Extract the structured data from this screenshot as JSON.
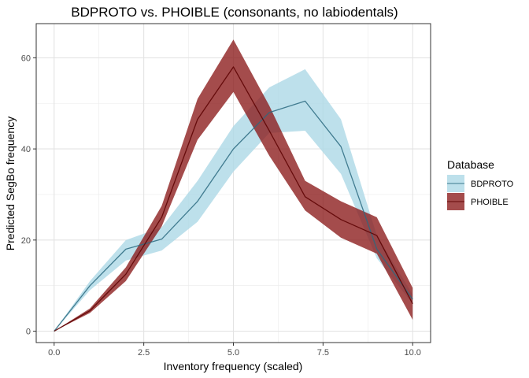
{
  "chart_data": {
    "type": "line",
    "title": "BDPROTO vs. PHOIBLE (consonants, no labiodentals)",
    "xlabel": "Inventory frequency (scaled)",
    "ylabel": "Predicted SegBo frequency",
    "xlim": [
      -0.5,
      10.5
    ],
    "ylim": [
      -2.5,
      67.5
    ],
    "x_ticks": [
      0,
      2.5,
      5,
      7.5,
      10
    ],
    "x_tick_labels": [
      "0.0",
      "2.5",
      "5.0",
      "7.5",
      "10.0"
    ],
    "y_ticks": [
      0,
      20,
      40,
      60
    ],
    "y_tick_labels": [
      "0",
      "20",
      "40",
      "60"
    ],
    "grid": true,
    "legend": {
      "title": "Database",
      "position": "right"
    },
    "x": [
      0,
      1,
      2,
      3,
      4,
      5,
      6,
      7,
      8,
      9,
      10
    ],
    "series": [
      {
        "name": "BDPROTO",
        "color": "#2b6a80",
        "ribbon_color": "#add8e6",
        "values": [
          0,
          10,
          18,
          20.2,
          28.5,
          40,
          48,
          50.5,
          40.5,
          18,
          7
        ],
        "lower": [
          0,
          9,
          15.5,
          17.7,
          24,
          35,
          43.5,
          44,
          34.5,
          16,
          6
        ],
        "upper": [
          0,
          11,
          20,
          22.8,
          33,
          45,
          53.5,
          57.5,
          46.5,
          21,
          8
        ]
      },
      {
        "name": "PHOIBLE",
        "color": "#5c0000",
        "ribbon_color": "#8b1a1a",
        "values": [
          0,
          4.5,
          12.5,
          25,
          46.5,
          58,
          44,
          29.5,
          24.5,
          21,
          6
        ],
        "lower": [
          0,
          4,
          11,
          23,
          42,
          52.5,
          38.5,
          26.5,
          20.5,
          17,
          2.5
        ],
        "upper": [
          0,
          5,
          14,
          27.5,
          51,
          64,
          49.5,
          33,
          28.5,
          25,
          9.5
        ]
      }
    ]
  }
}
